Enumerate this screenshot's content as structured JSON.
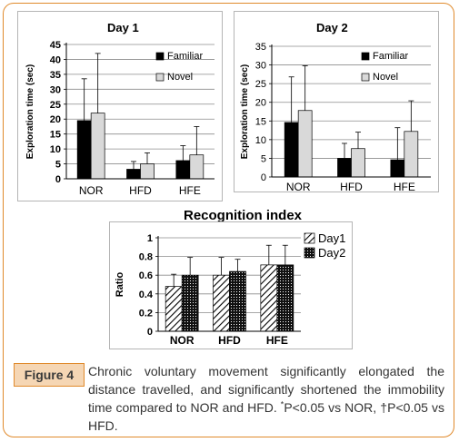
{
  "figure": {
    "label": "Figure 4",
    "caption_text": "Chronic voluntary movement significantly elongated the distance travelled, and significantly shortened the immobility time compared to NOR and HFD. ",
    "caption_sup1": "*",
    "caption_mid": "P<0.05 vs NOR, ",
    "caption_sup2": "†",
    "caption_end": "P<0.05 vs HFD."
  },
  "colors": {
    "frame": "#e08a2c",
    "caption_bg": "#f5d6b4",
    "familiar": "#000000",
    "novel": "#d9d9d9"
  },
  "chart_data": [
    {
      "id": "day1",
      "type": "bar",
      "title": "Day 1",
      "ylabel": "Exploration time (sec)",
      "categories": [
        "NOR",
        "HFD",
        "HFE"
      ],
      "ylim": [
        0,
        45
      ],
      "yticks": [
        0,
        5,
        10,
        15,
        20,
        25,
        30,
        35,
        40,
        45
      ],
      "grid": true,
      "legend_position": "right",
      "series": [
        {
          "name": "Familiar",
          "values": [
            19.5,
            3.2,
            6.1
          ],
          "errors": [
            14.0,
            2.6,
            5.0
          ],
          "fill": "solid-black"
        },
        {
          "name": "Novel",
          "values": [
            22.0,
            5.0,
            8.0
          ],
          "errors": [
            20.0,
            3.7,
            9.5
          ],
          "fill": "light-gray"
        }
      ]
    },
    {
      "id": "day2",
      "type": "bar",
      "title": "Day 2",
      "ylabel": "Exploration time (sec)",
      "categories": [
        "NOR",
        "HFD",
        "HFE"
      ],
      "ylim": [
        0,
        35
      ],
      "yticks": [
        0,
        5,
        10,
        15,
        20,
        25,
        30,
        35
      ],
      "grid": true,
      "legend_position": "right",
      "series": [
        {
          "name": "Familiar",
          "values": [
            14.6,
            5.0,
            4.6
          ],
          "errors": [
            12.2,
            4.0,
            8.6
          ],
          "fill": "solid-black"
        },
        {
          "name": "Novel",
          "values": [
            17.8,
            7.6,
            12.2
          ],
          "errors": [
            12.0,
            4.4,
            8.2
          ],
          "fill": "light-gray"
        }
      ]
    },
    {
      "id": "recognition",
      "type": "bar",
      "title": "Recognition index",
      "ylabel": "Ratio",
      "categories": [
        "NOR",
        "HFD",
        "HFE"
      ],
      "ylim": [
        0,
        1
      ],
      "yticks": [
        "0",
        "0.2",
        "0.4",
        "0.6",
        "0.8",
        "1"
      ],
      "grid": true,
      "legend_position": "right",
      "series": [
        {
          "name": "Day1",
          "values": [
            0.48,
            0.6,
            0.71
          ],
          "errors": [
            0.13,
            0.19,
            0.21
          ],
          "fill": "diagonal-hatch"
        },
        {
          "name": "Day2",
          "values": [
            0.6,
            0.64,
            0.71
          ],
          "errors": [
            0.19,
            0.13,
            0.21
          ],
          "fill": "dark-dots"
        }
      ]
    }
  ]
}
